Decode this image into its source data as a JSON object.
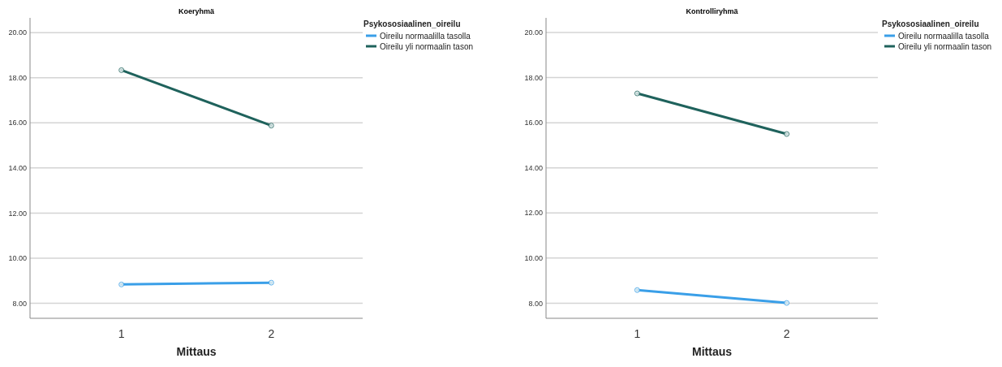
{
  "chart_data": [
    {
      "type": "line",
      "title": "Koeryhmä",
      "xlabel": "Mittaus",
      "legend_title": "Psykososiaalinen_oireilu",
      "categories": [
        "1",
        "2"
      ],
      "series": [
        {
          "name": "Oireilu normaalilla tasolla",
          "color": "#3a9fe8",
          "values": [
            8.83,
            8.91
          ]
        },
        {
          "name": "Oireilu yli normaalin tason",
          "color": "#1f625c",
          "values": [
            18.34,
            15.88
          ]
        }
      ],
      "ylim": [
        7.33,
        20.66
      ],
      "yticks": [
        {
          "value": 8,
          "label": "8.00"
        },
        {
          "value": 10,
          "label": "10.00"
        },
        {
          "value": 12,
          "label": "12.00"
        },
        {
          "value": 14,
          "label": "14.00"
        },
        {
          "value": 16,
          "label": "16.00"
        },
        {
          "value": 18,
          "label": "18.00"
        },
        {
          "value": 20,
          "label": "20.00"
        }
      ],
      "grid": "y",
      "legend": "top right",
      "marker": "circle",
      "line_style": "solid"
    },
    {
      "type": "line",
      "title": "Kontrolliryhmä",
      "xlabel": "Mittaus",
      "legend_title": "Psykososiaalinen_oireilu",
      "categories": [
        "1",
        "2"
      ],
      "series": [
        {
          "name": "Oireilu normaalilla tasolla",
          "color": "#3a9fe8",
          "values": [
            8.58,
            8.01
          ]
        },
        {
          "name": "Oireilu yli normaalin tason",
          "color": "#1f625c",
          "values": [
            17.3,
            15.5
          ]
        }
      ],
      "ylim": [
        7.33,
        20.65
      ],
      "yticks": [
        {
          "value": 8,
          "label": "8.00"
        },
        {
          "value": 10,
          "label": "10.00"
        },
        {
          "value": 12,
          "label": "12.00"
        },
        {
          "value": 14,
          "label": "14.00"
        },
        {
          "value": 16,
          "label": "16.00"
        },
        {
          "value": 18,
          "label": "18.00"
        },
        {
          "value": 20,
          "label": "20.00"
        }
      ],
      "grid": "y",
      "legend": "top right",
      "marker": "circle",
      "line_style": "solid"
    }
  ]
}
